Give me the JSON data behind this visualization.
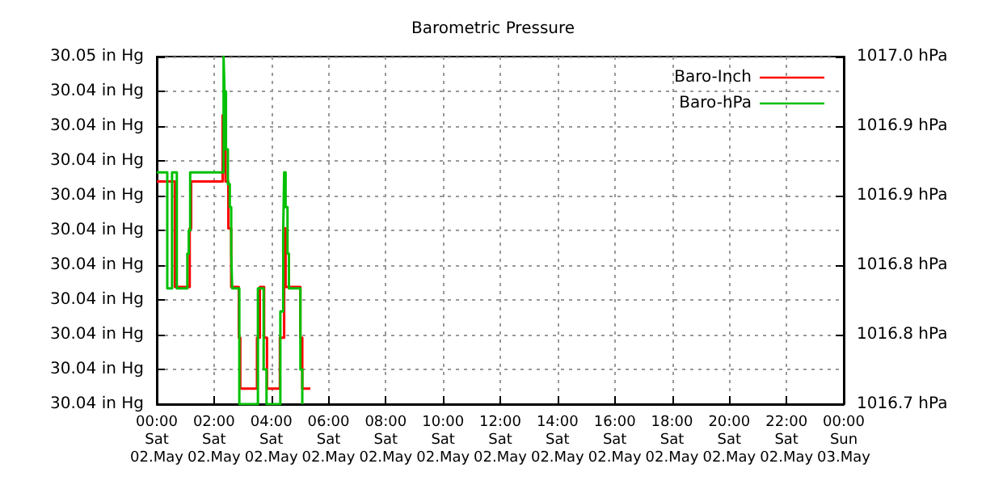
{
  "chart_data": {
    "type": "step",
    "title": "Barometric Pressure",
    "xlim": [
      "--05-02T00:00",
      "--05-03T00:00"
    ],
    "xticks": [
      {
        "value": "--05-02T00:00",
        "label": "00:00\nSat\n02.May"
      },
      {
        "value": "--05-02T02:00",
        "label": "02:00\nSat\n02.May"
      },
      {
        "value": "--05-02T04:00",
        "label": "04:00\nSat\n02.May"
      },
      {
        "value": "--05-02T06:00",
        "label": "06:00\nSat\n02.May"
      },
      {
        "value": "--05-02T08:00",
        "label": "08:00\nSat\n02.May"
      },
      {
        "value": "--05-02T10:00",
        "label": "10:00\nSat\n02.May"
      },
      {
        "value": "--05-02T12:00",
        "label": "12:00\nSat\n02.May"
      },
      {
        "value": "--05-02T14:00",
        "label": "14:00\nSat\n02.May"
      },
      {
        "value": "--05-02T16:00",
        "label": "16:00\nSat\n02.May"
      },
      {
        "value": "--05-02T18:00",
        "label": "18:00\nSat\n02.May"
      },
      {
        "value": "--05-02T20:00",
        "label": "20:00\nSat\n02.May"
      },
      {
        "value": "--05-02T22:00",
        "label": "22:00\nSat\n02.May"
      },
      {
        "value": "--05-03T00:00",
        "label": "00:00\nSun\n03.May"
      }
    ],
    "ylim": [
      30.0365,
      30.0454
    ],
    "yticks": [
      {
        "value": 30.0365,
        "label": "30.04 in Hg"
      },
      {
        "value": 30.03739,
        "label": "30.04 in Hg"
      },
      {
        "value": 30.03828,
        "label": "30.04 in Hg"
      },
      {
        "value": 30.03917,
        "label": "30.04 in Hg"
      },
      {
        "value": 30.04006,
        "label": "30.04 in Hg"
      },
      {
        "value": 30.04095,
        "label": "30.04 in Hg"
      },
      {
        "value": 30.04184,
        "label": "30.04 in Hg"
      },
      {
        "value": 30.04273,
        "label": "30.04 in Hg"
      },
      {
        "value": 30.04362,
        "label": "30.04 in Hg"
      },
      {
        "value": 30.04451,
        "label": "30.04 in Hg"
      },
      {
        "value": 30.0454,
        "label": "30.05 in Hg"
      }
    ],
    "y2lim": [
      1016.7,
      1017.0
    ],
    "y2ticks": [
      {
        "value": 1016.7,
        "label": "1016.7 hPa"
      },
      {
        "value": 1016.76,
        "label": "1016.8 hPa"
      },
      {
        "value": 1016.82,
        "label": "1016.8 hPa"
      },
      {
        "value": 1016.88,
        "label": "1016.9 hPa"
      },
      {
        "value": 1016.94,
        "label": "1016.9 hPa"
      },
      {
        "value": 1017.0,
        "label": "1017.0 hPa"
      }
    ],
    "grid": true,
    "legend": "top right",
    "series": [
      {
        "name": "Baro-Inch",
        "color": "#ff0000",
        "x": [
          "--05-02T00:00",
          "--05-02T00:38",
          "--05-02T01:09",
          "--05-02T01:12",
          "--05-02T02:18",
          "--05-02T02:24",
          "--05-02T02:30",
          "--05-02T02:36",
          "--05-02T02:52",
          "--05-02T02:55",
          "--05-02T03:30",
          "--05-02T03:36",
          "--05-02T03:45",
          "--05-02T03:51",
          "--05-02T04:18",
          "--05-02T04:27",
          "--05-02T04:30",
          "--05-02T05:01",
          "--05-02T05:05",
          "--05-02T05:22"
        ],
        "values": [
          30.0422,
          30.0395,
          30.041,
          30.0422,
          30.0439,
          30.0422,
          30.041,
          30.0395,
          30.0382,
          30.0369,
          30.0382,
          30.0395,
          30.0382,
          30.0369,
          30.0382,
          30.041,
          30.0395,
          30.0382,
          30.0369,
          30.0369
        ]
      },
      {
        "name": "Baro-hPa",
        "color": "#00c000",
        "axis": "y2",
        "x": [
          "--05-02T00:00",
          "--05-02T00:22",
          "--05-02T00:32",
          "--05-02T00:42",
          "--05-02T01:04",
          "--05-02T01:07",
          "--05-02T01:10",
          "--05-02T02:20",
          "--05-02T02:22",
          "--05-02T02:25",
          "--05-02T02:29",
          "--05-02T02:33",
          "--05-02T02:36",
          "--05-02T02:38",
          "--05-02T02:53",
          "--05-02T03:32",
          "--05-02T03:44",
          "--05-02T03:50",
          "--05-02T04:19",
          "--05-02T04:25",
          "--05-02T04:27",
          "--05-02T04:30",
          "--05-02T04:34",
          "--05-02T04:37",
          "--05-02T05:01",
          "--05-02T05:05",
          "--05-02T05:07"
        ],
        "values": [
          1016.9,
          1016.8,
          1016.9,
          1016.8,
          1016.83,
          1016.85,
          1016.9,
          1017.0,
          1016.97,
          1016.92,
          1016.89,
          1016.87,
          1016.83,
          1016.8,
          1016.7,
          1016.8,
          1016.73,
          1016.7,
          1016.78,
          1016.85,
          1016.9,
          1016.87,
          1016.83,
          1016.8,
          1016.73,
          1016.7,
          1016.7
        ]
      }
    ]
  }
}
